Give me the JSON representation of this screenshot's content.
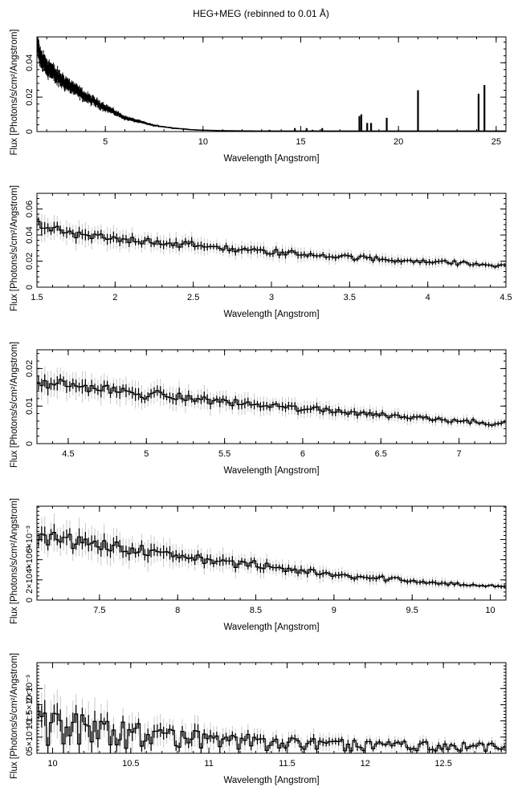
{
  "figure": {
    "title": "HEG+MEG (rebinned to 0.01 Å)"
  },
  "colors": {
    "data": "#000000",
    "error_bar": "#c8c8c8",
    "frame": "#000000",
    "background": "#ffffff"
  },
  "chart_data": [
    {
      "type": "line",
      "xlabel": "Wavelength [Angstrom]",
      "ylabel": "Flux [Photons/s/cm²/Angstrom]",
      "xlim": [
        1.5,
        25.5
      ],
      "ylim": [
        0,
        0.055
      ],
      "xticks": [
        5,
        10,
        15,
        20,
        25
      ],
      "xtick_labels": [
        "5",
        "10",
        "15",
        "20",
        "25"
      ],
      "yticks": [
        0,
        0.02,
        0.04
      ],
      "ytick_labels": [
        "0",
        "0.02",
        "0.04"
      ],
      "style": "histogram with error bars",
      "series": [
        {
          "x": [
            1.5,
            1.7,
            2,
            2.5,
            3,
            3.5,
            4,
            4.5,
            5,
            5.5,
            6,
            6.5,
            7,
            7.5,
            8,
            8.5,
            9,
            9.5,
            10,
            11,
            12,
            13,
            14,
            15,
            16,
            17,
            18,
            19,
            20,
            21,
            22,
            23,
            24,
            25,
            25.5
          ],
          "y": [
            0.05,
            0.042,
            0.038,
            0.032,
            0.028,
            0.024,
            0.02,
            0.017,
            0.014,
            0.011,
            0.008,
            0.0065,
            0.005,
            0.0035,
            0.0028,
            0.002,
            0.0015,
            0.001,
            0.0008,
            0.0005,
            0.0004,
            0.0003,
            0.0003,
            0.0003,
            0.0003,
            0.0003,
            0.0003,
            0.0003,
            0.0003,
            0.0003,
            0.0003,
            0.0003,
            0.0003,
            0.0003,
            0.0003
          ]
        }
      ],
      "lines": [
        {
          "x": 18.0,
          "y": 0.009
        },
        {
          "x": 18.1,
          "y": 0.01
        },
        {
          "x": 18.4,
          "y": 0.005
        },
        {
          "x": 18.6,
          "y": 0.005
        },
        {
          "x": 19.4,
          "y": 0.008
        },
        {
          "x": 21.0,
          "y": 0.024
        },
        {
          "x": 24.1,
          "y": 0.022
        },
        {
          "x": 24.4,
          "y": 0.027
        },
        {
          "x": 14.7,
          "y": 0.002
        },
        {
          "x": 15.3,
          "y": 0.002
        },
        {
          "x": 15.6,
          "y": 0.001
        },
        {
          "x": 16.1,
          "y": 0.002
        },
        {
          "x": 13.4,
          "y": 0.001
        }
      ]
    },
    {
      "type": "line",
      "xlabel": "Wavelength [Angstrom]",
      "ylabel": "Flux [Photons/s/cm²/Angstrom]",
      "xlim": [
        1.5,
        4.5
      ],
      "ylim": [
        0,
        0.072
      ],
      "xticks": [
        1.5,
        2,
        2.5,
        3,
        3.5,
        4,
        4.5
      ],
      "xtick_labels": [
        "1.5",
        "2",
        "2.5",
        "3",
        "3.5",
        "4",
        "4.5"
      ],
      "yticks": [
        0,
        0.02,
        0.04,
        0.06
      ],
      "ytick_labels": [
        "0",
        "0.02",
        "0.04",
        "0.06"
      ],
      "style": "histogram with error bars",
      "series": [
        {
          "x": [
            1.5,
            1.75,
            2,
            2.25,
            2.5,
            2.75,
            3,
            3.25,
            3.5,
            3.75,
            4,
            4.25,
            4.5
          ],
          "y": [
            0.046,
            0.04,
            0.037,
            0.035,
            0.032,
            0.029,
            0.027,
            0.025,
            0.023,
            0.021,
            0.02,
            0.018,
            0.016
          ]
        }
      ]
    },
    {
      "type": "line",
      "xlabel": "Wavelength [Angstrom]",
      "ylabel": "Flux [Photons/s/cm²/Angstrom]",
      "xlim": [
        4.3,
        7.3
      ],
      "ylim": [
        0,
        0.025
      ],
      "xticks": [
        4.5,
        5,
        5.5,
        6,
        6.5,
        7
      ],
      "xtick_labels": [
        "4.5",
        "5",
        "5.5",
        "6",
        "6.5",
        "7"
      ],
      "yticks": [
        0,
        0.01,
        0.02
      ],
      "ytick_labels": [
        "0",
        "0.01",
        "0.02"
      ],
      "style": "histogram with error bars",
      "series": [
        {
          "x": [
            4.3,
            4.55,
            4.8,
            5.05,
            5.3,
            5.55,
            5.8,
            6.05,
            6.3,
            6.55,
            6.8,
            7.05,
            7.3
          ],
          "y": [
            0.0165,
            0.0155,
            0.014,
            0.013,
            0.012,
            0.011,
            0.01,
            0.0092,
            0.0085,
            0.0075,
            0.0068,
            0.006,
            0.0052
          ]
        }
      ]
    },
    {
      "type": "line",
      "xlabel": "Wavelength [Angstrom]",
      "ylabel": "Flux [Photons/s/cm²/Angstrom]",
      "xlim": [
        7.1,
        10.1
      ],
      "ylim": [
        0,
        0.0093
      ],
      "xticks": [
        7.5,
        8,
        8.5,
        9,
        9.5,
        10
      ],
      "xtick_labels": [
        "7.5",
        "8",
        "8.5",
        "9",
        "9.5",
        "10"
      ],
      "yticks": [
        0,
        0.002,
        0.004,
        0.006
      ],
      "ytick_labels": [
        "0",
        "2×10⁻³",
        "4×10⁻³",
        "6×10⁻³"
      ],
      "style": "histogram with error bars",
      "series": [
        {
          "x": [
            7.1,
            7.35,
            7.6,
            7.85,
            8.1,
            8.35,
            8.6,
            8.85,
            9.1,
            9.35,
            9.6,
            9.85,
            10.1
          ],
          "y": [
            0.0063,
            0.0058,
            0.0052,
            0.0047,
            0.0042,
            0.0037,
            0.0032,
            0.0028,
            0.0024,
            0.0021,
            0.0018,
            0.0015,
            0.0013
          ]
        }
      ]
    },
    {
      "type": "line",
      "xlabel": "Wavelength [Angstrom]",
      "ylabel": "Flux [Photons/s/cm²/Angstrom]",
      "xlim": [
        9.9,
        12.9
      ],
      "ylim": [
        0,
        0.0028
      ],
      "xticks": [
        10,
        10.5,
        11,
        11.5,
        12,
        12.5
      ],
      "xtick_labels": [
        "10",
        "10.5",
        "11",
        "11.5",
        "12",
        "12.5"
      ],
      "yticks": [
        0,
        0.0005,
        0.001,
        0.0015,
        0.002
      ],
      "ytick_labels": [
        "0",
        "5×10⁻⁴",
        "10⁻³",
        "1.5×10⁻³",
        "2×10⁻³"
      ],
      "style": "histogram with error bars",
      "series": [
        {
          "x": [
            9.9,
            10.15,
            10.4,
            10.65,
            10.9,
            11.15,
            11.4,
            11.65,
            11.9,
            12.15,
            12.4,
            12.65,
            12.9
          ],
          "y": [
            0.0011,
            0.001,
            0.0008,
            0.00065,
            0.0006,
            0.0005,
            0.0004,
            0.0004,
            0.00035,
            0.0003,
            0.0003,
            0.00025,
            0.00025
          ]
        }
      ]
    }
  ]
}
